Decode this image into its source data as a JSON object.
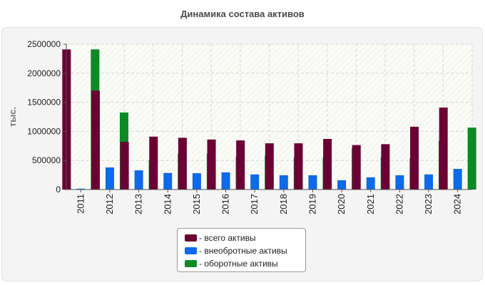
{
  "chart_data": {
    "type": "bar",
    "title": "Динамика состава активов",
    "xlabel": "",
    "ylabel": "тыс.",
    "ylim": [
      0,
      2500000
    ],
    "yticks": [
      "0",
      "500000",
      "1000000",
      "1500000",
      "2000000",
      "2500000"
    ],
    "yticks_values": [
      0,
      500000,
      1000000,
      1500000,
      2000000,
      2500000
    ],
    "grid": true,
    "legend_position": "bottom",
    "categories": [
      "2011",
      "2012",
      "2013",
      "2014",
      "2015",
      "2016",
      "2017",
      "2018",
      "2019",
      "2020",
      "2021",
      "2022",
      "2023",
      "2024"
    ],
    "series": [
      {
        "name": "- всего активы",
        "color": "#6b0034",
        "values": [
          2410000,
          1700000,
          820000,
          910000,
          890000,
          860000,
          845000,
          795000,
          795000,
          870000,
          765000,
          780000,
          1080000,
          1410000
        ]
      },
      {
        "name": "- внеобротные активы",
        "color": "#0d6ae8",
        "values": [
          15000,
          380000,
          330000,
          285000,
          280000,
          295000,
          260000,
          245000,
          245000,
          160000,
          210000,
          245000,
          260000,
          355000
        ]
      },
      {
        "name": "- оборотные активы",
        "color": "#0b8a25",
        "values": [
          2410000,
          1325000,
          505000,
          625000,
          620000,
          565000,
          585000,
          555000,
          550000,
          710000,
          555000,
          540000,
          835000,
          1065000
        ]
      }
    ]
  }
}
